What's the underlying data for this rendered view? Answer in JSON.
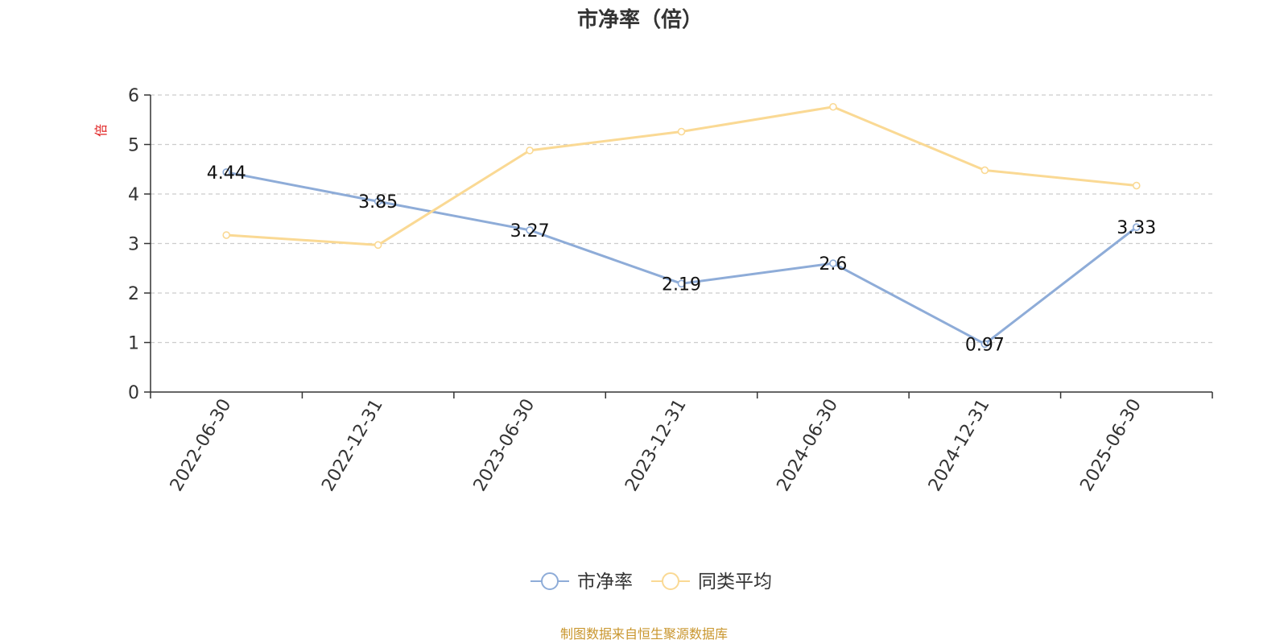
{
  "chart_data": {
    "type": "line",
    "title": "市净率（倍）",
    "xlabel": "",
    "ylabel": "倍",
    "ylim": [
      0,
      6
    ],
    "yticks": [
      0,
      1,
      2,
      3,
      4,
      5,
      6
    ],
    "grid": "horizontal-dashed",
    "legend_placement": "bottom-center",
    "categories": [
      "2022-06-30",
      "2022-12-31",
      "2023-06-30",
      "2023-12-31",
      "2024-06-30",
      "2024-12-31",
      "2025-06-30"
    ],
    "series": [
      {
        "name": "市净率",
        "color": "#8eacd8",
        "values": [
          4.44,
          3.85,
          3.27,
          2.19,
          2.6,
          0.97,
          3.33
        ],
        "labels": [
          "4.44",
          "3.85",
          "3.27",
          "2.19",
          "2.6",
          "0.97",
          "3.33"
        ]
      },
      {
        "name": "同类平均",
        "color": "#fad994",
        "values": [
          3.17,
          2.97,
          4.88,
          5.26,
          5.76,
          4.48,
          4.17
        ]
      }
    ]
  },
  "source_note": "制图数据来自恒生聚源数据库"
}
